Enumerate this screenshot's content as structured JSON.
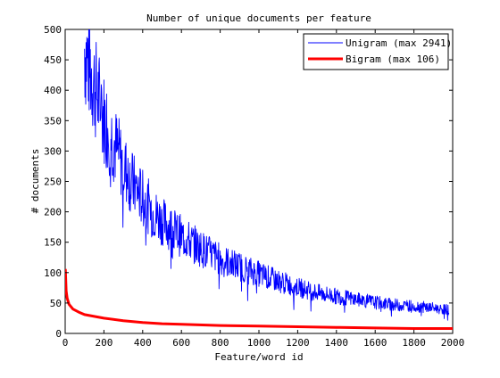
{
  "chart_data": {
    "type": "line",
    "title": "Number of unique documents per feature",
    "xlabel": "Feature/word id",
    "ylabel": "# documents",
    "xlim": [
      0,
      2000
    ],
    "ylim": [
      0,
      500
    ],
    "xticks": [
      0,
      200,
      400,
      600,
      800,
      1000,
      1200,
      1400,
      1600,
      1800,
      2000
    ],
    "yticks": [
      0,
      50,
      100,
      150,
      200,
      250,
      300,
      350,
      400,
      450,
      500
    ],
    "grid": false,
    "legend_position": "top-right",
    "series": [
      {
        "name": "Unigram (max 2941)",
        "color": "#0000ff",
        "line_width": "thin",
        "noisy": true,
        "x": [
          100,
          150,
          200,
          250,
          300,
          350,
          400,
          450,
          500,
          600,
          700,
          800,
          900,
          1000,
          1100,
          1200,
          1300,
          1400,
          1500,
          1600,
          1700,
          1800,
          1900,
          1980
        ],
        "values": [
          470,
          410,
          355,
          315,
          275,
          245,
          222,
          200,
          185,
          160,
          140,
          122,
          110,
          98,
          86,
          76,
          67,
          61,
          56,
          51,
          47,
          45,
          42,
          39
        ]
      },
      {
        "name": "Bigram (max 106)",
        "color": "#ff0000",
        "line_width": "thick",
        "noisy": false,
        "x": [
          1,
          5,
          10,
          20,
          40,
          70,
          100,
          150,
          200,
          300,
          400,
          500,
          600,
          800,
          1000,
          1200,
          1400,
          1600,
          1800,
          2000
        ],
        "values": [
          106,
          70,
          58,
          48,
          40,
          35,
          31,
          28,
          25,
          21,
          18,
          16,
          15,
          13,
          12,
          11,
          10,
          9,
          8,
          8
        ]
      }
    ]
  }
}
